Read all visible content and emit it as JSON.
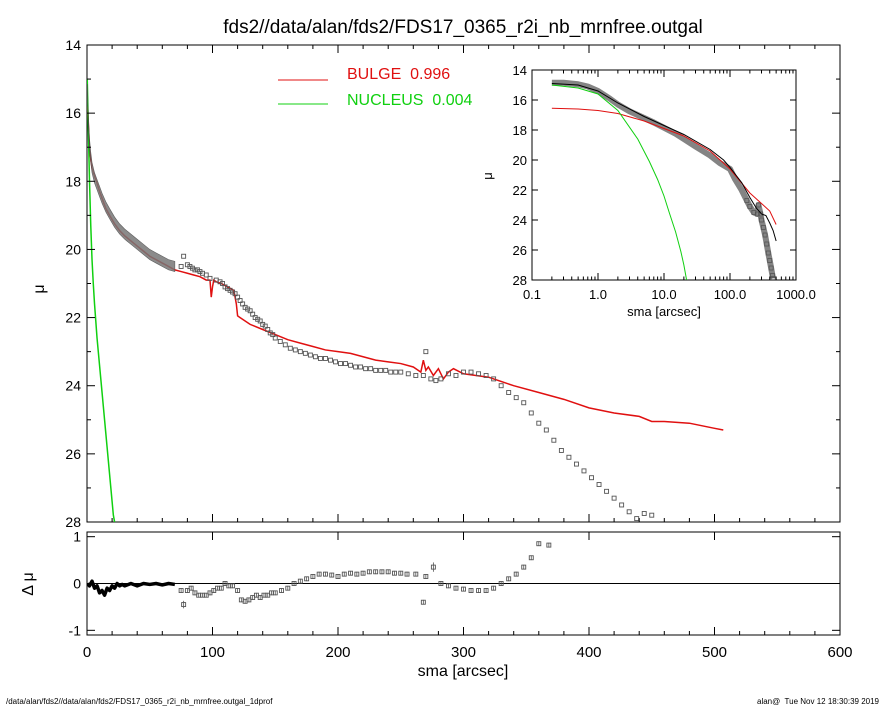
{
  "page_title": "fds2//data/alan/fds2/FDS17_0365_r2i_nb_mrnfree.outgal",
  "footer": {
    "left": "/data/alan/fds2//data/alan/fds2/FDS17_0365_r2i_nb_mrnfree.outgal_1dprof",
    "right": "alan@  Tue Nov 12 18:30:39 2019"
  },
  "colors": {
    "bulge": "#e01010",
    "nucleus": "#10d010",
    "data": "#555555",
    "inset_sum": "#000000"
  },
  "chart_data": [
    {
      "id": "main",
      "type": "line",
      "xlabel": "sma [arcsec]",
      "ylabel": "μ",
      "xlim": [
        0,
        600
      ],
      "ylim": [
        28,
        14
      ],
      "y_inverted": true,
      "x_ticks": [
        "0",
        "100",
        "200",
        "300",
        "400",
        "500",
        "600"
      ],
      "y_ticks": [
        "14",
        "16",
        "18",
        "20",
        "22",
        "24",
        "26",
        "28"
      ],
      "legend_position": "top-center",
      "series": [
        {
          "name": "BULGE  0.996",
          "color": "#e01010",
          "x": [
            0.5,
            2,
            4,
            6,
            8,
            10,
            12,
            15,
            18,
            22,
            26,
            30,
            35,
            40,
            45,
            50,
            55,
            60,
            65,
            70,
            75,
            80,
            85,
            90,
            95,
            98,
            99,
            100,
            101,
            103,
            107,
            112,
            117,
            119,
            120,
            122,
            130,
            140,
            150,
            160,
            170,
            180,
            190,
            200,
            210,
            220,
            230,
            240,
            250,
            260,
            266,
            268,
            270,
            272,
            276,
            280,
            284,
            288,
            292,
            300,
            320,
            340,
            360,
            380,
            400,
            420,
            440,
            450,
            460,
            480,
            500,
            507
          ],
          "y": [
            15.8,
            17.1,
            17.6,
            17.85,
            18.05,
            18.3,
            18.5,
            18.8,
            19.0,
            19.25,
            19.45,
            19.6,
            19.75,
            19.9,
            20.05,
            20.2,
            20.3,
            20.4,
            20.5,
            20.6,
            20.65,
            20.7,
            20.75,
            20.8,
            20.9,
            20.9,
            21.4,
            21.1,
            20.9,
            20.95,
            21.0,
            21.1,
            21.2,
            21.6,
            21.95,
            22.0,
            22.2,
            22.35,
            22.5,
            22.65,
            22.75,
            22.85,
            22.95,
            23.0,
            23.05,
            23.15,
            23.25,
            23.3,
            23.35,
            23.45,
            23.6,
            23.25,
            23.55,
            23.45,
            23.7,
            23.5,
            23.8,
            23.6,
            23.5,
            23.65,
            23.75,
            24.0,
            24.2,
            24.4,
            24.65,
            24.8,
            24.9,
            25.05,
            25.05,
            25.1,
            25.25,
            25.3
          ]
        },
        {
          "name": "NUCLEUS  0.004",
          "color": "#10d010",
          "x": [
            0.2,
            0.5,
            1,
            2,
            3,
            4,
            5,
            6,
            7,
            8,
            9,
            10,
            11,
            12,
            13,
            14,
            15,
            16,
            17,
            18,
            19,
            20,
            21,
            22
          ],
          "y": [
            15.0,
            15.5,
            16.4,
            18.0,
            19.3,
            20.3,
            21.0,
            21.6,
            22.1,
            22.6,
            23.0,
            23.4,
            23.8,
            24.2,
            24.6,
            25.0,
            25.4,
            25.8,
            26.2,
            26.6,
            27.0,
            27.4,
            27.8,
            28.0
          ]
        },
        {
          "name": "",
          "type": "scatter",
          "color": "#555555",
          "x": [
            75,
            77,
            80,
            82,
            84,
            86,
            88,
            90,
            92,
            95,
            98,
            103,
            106,
            108,
            110,
            112,
            114,
            116,
            118,
            120,
            122,
            124,
            126,
            128,
            130,
            132,
            134,
            136,
            138,
            140,
            142,
            144,
            146,
            148,
            150,
            154,
            158,
            162,
            166,
            170,
            174,
            178,
            182,
            186,
            190,
            194,
            198,
            202,
            206,
            210,
            214,
            218,
            222,
            226,
            230,
            234,
            238,
            242,
            246,
            250,
            256,
            262,
            268,
            270,
            274,
            278,
            282,
            288,
            294,
            300,
            306,
            312,
            318,
            324,
            330,
            336,
            342,
            348,
            354,
            360,
            366,
            372,
            378,
            384,
            390,
            396,
            402,
            408,
            414,
            420,
            426,
            432,
            438,
            444,
            450
          ],
          "y": [
            20.5,
            20.2,
            20.45,
            20.5,
            20.55,
            20.6,
            20.6,
            20.65,
            20.7,
            20.75,
            20.85,
            20.9,
            20.95,
            21.0,
            21.1,
            21.15,
            21.2,
            21.25,
            21.3,
            21.4,
            21.5,
            21.6,
            21.7,
            21.75,
            21.8,
            21.9,
            22.0,
            22.05,
            22.1,
            22.2,
            22.25,
            22.35,
            22.45,
            22.5,
            22.6,
            22.7,
            22.8,
            22.9,
            22.95,
            23.0,
            23.05,
            23.1,
            23.15,
            23.2,
            23.2,
            23.25,
            23.3,
            23.35,
            23.35,
            23.4,
            23.45,
            23.45,
            23.5,
            23.5,
            23.55,
            23.55,
            23.55,
            23.6,
            23.6,
            23.6,
            23.65,
            23.7,
            23.7,
            23.0,
            23.8,
            23.85,
            23.8,
            23.65,
            23.7,
            23.6,
            23.6,
            23.65,
            23.7,
            23.8,
            24.0,
            24.2,
            24.35,
            24.5,
            24.8,
            25.1,
            25.3,
            25.6,
            25.9,
            26.1,
            26.3,
            26.5,
            26.7,
            26.9,
            27.1,
            27.3,
            27.5,
            27.7,
            27.9,
            27.75,
            27.8
          ],
          "error": [
            0.05,
            0.06,
            0.05,
            0.05,
            0.05,
            0.05,
            0.05,
            0.05,
            0.05,
            0.05,
            0.06,
            0.06,
            0.06,
            0.06,
            0.06,
            0.06,
            0.06,
            0.06,
            0.06,
            0.06,
            0.06,
            0.06,
            0.06,
            0.06,
            0.06,
            0.06,
            0.06,
            0.06,
            0.06,
            0.06,
            0.06,
            0.06,
            0.06,
            0.06,
            0.06,
            0.06,
            0.06,
            0.06,
            0.06,
            0.06,
            0.06,
            0.06,
            0.06,
            0.06,
            0.06,
            0.06,
            0.06,
            0.06,
            0.06,
            0.06,
            0.06,
            0.06,
            0.06,
            0.06,
            0.06,
            0.06,
            0.06,
            0.06,
            0.06,
            0.06,
            0.06,
            0.06,
            0.06,
            0.06,
            0.06,
            0.06,
            0.06,
            0.06,
            0.06,
            0.06,
            0.06,
            0.06,
            0.06,
            0.06,
            0.06,
            0.06,
            0.06,
            0.06,
            0.06,
            0.06,
            0.06,
            0.06,
            0.06,
            0.06,
            0.06,
            0.06,
            0.06,
            0.06,
            0.06,
            0.06,
            0.06,
            0.06,
            0.06,
            0.06,
            0.06
          ]
        },
        {
          "name": "",
          "type": "band",
          "color": "#555555",
          "x": [
            0.3,
            1,
            2,
            3,
            4,
            6,
            8,
            10,
            12,
            15,
            18,
            22,
            26,
            30,
            35,
            40,
            45,
            50,
            55,
            60,
            65,
            70
          ],
          "y": [
            15.3,
            16.2,
            16.9,
            17.3,
            17.6,
            17.9,
            18.1,
            18.3,
            18.5,
            18.75,
            18.95,
            19.2,
            19.4,
            19.55,
            19.7,
            19.85,
            20.0,
            20.15,
            20.25,
            20.35,
            20.45,
            20.5
          ],
          "half_width": 0.15
        }
      ]
    },
    {
      "id": "residual",
      "type": "scatter",
      "xlabel": "sma [arcsec]",
      "ylabel": "Δ μ",
      "xlim": [
        0,
        600
      ],
      "ylim": [
        -1.1,
        1.1
      ],
      "y_ticks": [
        "1",
        "0",
        "-1"
      ],
      "reference_line": 0,
      "band": {
        "x": [
          0.5,
          2,
          4,
          6,
          8,
          10,
          12,
          14,
          16,
          18,
          20,
          22,
          24,
          26,
          28,
          30,
          35,
          40,
          45,
          50,
          55,
          60,
          65,
          70
        ],
        "y": [
          0.0,
          -0.05,
          0.05,
          -0.1,
          -0.05,
          -0.2,
          -0.15,
          -0.25,
          -0.1,
          -0.15,
          -0.05,
          -0.1,
          0.0,
          -0.05,
          -0.02,
          -0.05,
          0.0,
          -0.05,
          0.0,
          -0.02,
          0.0,
          -0.03,
          0.0,
          -0.02
        ],
        "half_width": 0.04
      },
      "x": [
        75,
        77,
        80,
        83,
        86,
        89,
        92,
        95,
        98,
        101,
        104,
        107,
        110,
        113,
        116,
        120,
        123,
        126,
        129,
        132,
        135,
        138,
        141,
        144,
        147,
        150,
        155,
        160,
        165,
        170,
        175,
        180,
        185,
        190,
        195,
        200,
        205,
        210,
        215,
        220,
        225,
        230,
        235,
        240,
        245,
        250,
        255,
        262,
        268,
        270,
        276,
        282,
        288,
        294,
        300,
        306,
        312,
        318,
        324,
        330,
        336,
        342,
        348,
        354,
        360,
        368
      ],
      "y": [
        -0.15,
        -0.45,
        -0.15,
        -0.1,
        -0.2,
        -0.25,
        -0.25,
        -0.25,
        -0.2,
        -0.15,
        -0.1,
        -0.1,
        0.0,
        -0.05,
        -0.05,
        -0.15,
        -0.35,
        -0.38,
        -0.35,
        -0.3,
        -0.25,
        -0.3,
        -0.25,
        -0.25,
        -0.2,
        -0.2,
        -0.15,
        -0.1,
        0.0,
        0.05,
        0.1,
        0.15,
        0.2,
        0.2,
        0.18,
        0.15,
        0.2,
        0.22,
        0.2,
        0.22,
        0.25,
        0.25,
        0.25,
        0.25,
        0.22,
        0.22,
        0.2,
        0.2,
        -0.4,
        0.15,
        0.35,
        0.0,
        -0.05,
        -0.1,
        -0.12,
        -0.15,
        -0.15,
        -0.15,
        -0.1,
        0.0,
        0.1,
        0.2,
        0.35,
        0.55,
        0.85,
        0.82
      ],
      "error": [
        0.05,
        0.08,
        0.05,
        0.05,
        0.05,
        0.05,
        0.05,
        0.05,
        0.05,
        0.05,
        0.05,
        0.05,
        0.05,
        0.05,
        0.05,
        0.05,
        0.05,
        0.05,
        0.05,
        0.05,
        0.05,
        0.05,
        0.05,
        0.05,
        0.05,
        0.05,
        0.05,
        0.05,
        0.05,
        0.05,
        0.05,
        0.05,
        0.05,
        0.05,
        0.05,
        0.05,
        0.05,
        0.05,
        0.05,
        0.05,
        0.05,
        0.05,
        0.05,
        0.05,
        0.05,
        0.05,
        0.05,
        0.05,
        0.05,
        0.05,
        0.1,
        0.05,
        0.05,
        0.05,
        0.05,
        0.05,
        0.05,
        0.05,
        0.05,
        0.05,
        0.05,
        0.05,
        0.05,
        0.05,
        0.05,
        0.05
      ],
      "x_ticks": [
        "0",
        "100",
        "200",
        "300",
        "400",
        "500",
        "600"
      ]
    },
    {
      "id": "inset",
      "type": "line",
      "xlabel": "sma [arcsec]",
      "ylabel": "μ",
      "x_scale": "log",
      "xlim": [
        0.1,
        1000
      ],
      "ylim": [
        28,
        14
      ],
      "y_inverted": true,
      "x_ticks": [
        "0.1",
        "1.0",
        "10.0",
        "100.0",
        "1000.0"
      ],
      "y_ticks": [
        "14",
        "16",
        "18",
        "20",
        "22",
        "24",
        "26",
        "28"
      ],
      "bulge": {
        "x": [
          0.2,
          0.5,
          1,
          2,
          5,
          10,
          20,
          50,
          100,
          200,
          300,
          400,
          500
        ],
        "y": [
          16.55,
          16.6,
          16.7,
          16.9,
          17.4,
          17.9,
          18.4,
          19.4,
          20.6,
          22.2,
          22.9,
          23.4,
          24.3
        ]
      },
      "nucleus": {
        "x": [
          0.2,
          0.5,
          1,
          2,
          4,
          6,
          8,
          10,
          12,
          15,
          18,
          20,
          22
        ],
        "y": [
          15.0,
          15.2,
          15.6,
          16.7,
          18.6,
          20.1,
          21.3,
          22.4,
          23.5,
          24.8,
          26.1,
          27.0,
          28.0
        ]
      },
      "total": {
        "x": [
          0.2,
          0.5,
          1,
          2,
          5,
          10,
          20,
          50,
          80,
          100,
          150,
          200,
          250,
          300,
          350,
          400,
          450,
          500
        ],
        "y": [
          14.9,
          15.0,
          15.4,
          16.2,
          17.1,
          17.7,
          18.3,
          19.3,
          20.0,
          20.5,
          21.5,
          22.5,
          23.2,
          23.6,
          23.7,
          24.2,
          24.7,
          25.4
        ]
      },
      "data": {
        "x": [
          0.2,
          0.3,
          0.5,
          0.7,
          1,
          1.5,
          2,
          3,
          5,
          7,
          10,
          15,
          20,
          30,
          50,
          70,
          100,
          120,
          150,
          180,
          200,
          230,
          260,
          270,
          290,
          300,
          320,
          340,
          360,
          380,
          400,
          420,
          440,
          450
        ],
        "y": [
          14.85,
          14.85,
          14.95,
          15.1,
          15.4,
          15.9,
          16.3,
          16.75,
          17.2,
          17.5,
          17.85,
          18.25,
          18.6,
          19.1,
          19.7,
          20.2,
          20.6,
          21.3,
          22.0,
          22.7,
          23.1,
          23.5,
          23.6,
          23.0,
          23.6,
          24.0,
          24.5,
          25.0,
          25.6,
          26.2,
          26.7,
          27.2,
          27.7,
          27.9
        ]
      }
    }
  ]
}
